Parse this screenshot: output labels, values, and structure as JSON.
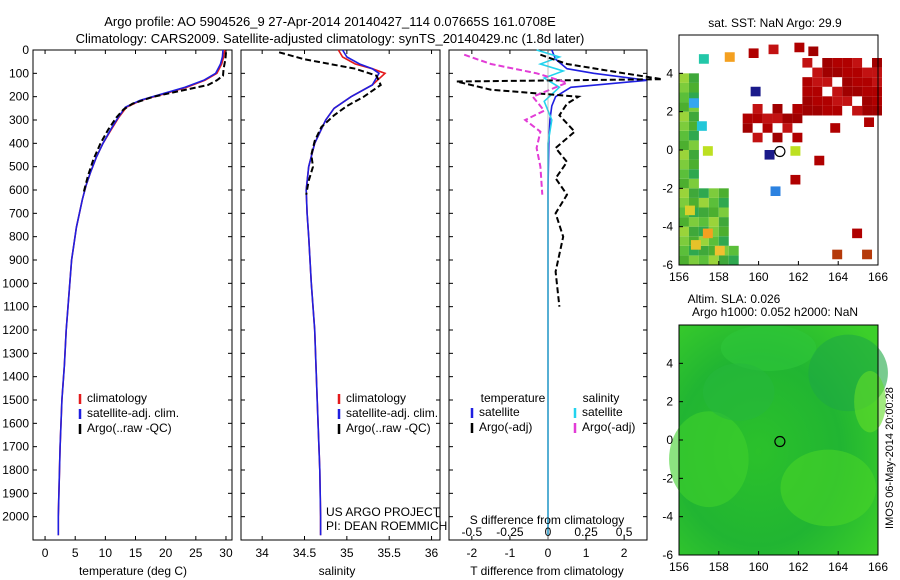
{
  "header": {
    "title_line1": "Argo profile: AO 5904526_9 27-Apr-2014 20140427_114 0.07665S 161.0708E",
    "title_line2": "Climatology: CARS2009. Satellite-adjusted climatology: synTS_20140429.nc (1.8d later)"
  },
  "project_note": {
    "line1": "US ARGO PROJECT",
    "line2": "PI: DEAN ROEMMICH"
  },
  "footer_note": "IMOS 06-May-2014 20:00:28",
  "colors": {
    "climatology": "#e41a1c",
    "satellite": "#1f1fe0",
    "argo": "#000000",
    "sat_s": "#22d3ee",
    "argo_s": "#e23cd6",
    "axis": "#000000"
  },
  "chart_data": [
    {
      "id": "temperature",
      "type": "line",
      "xlabel": "temperature (deg C)",
      "ylabel": "",
      "xlim": [
        -2,
        31
      ],
      "ylim": [
        2100,
        0
      ],
      "xticks": [
        0,
        5,
        10,
        15,
        20,
        25,
        30
      ],
      "yticks": [
        0,
        100,
        200,
        300,
        400,
        500,
        600,
        700,
        800,
        900,
        1000,
        1100,
        1200,
        1300,
        1400,
        1500,
        1600,
        1700,
        1800,
        1900,
        2000
      ],
      "legend": [
        "climatology",
        "satellite-adj. clim.",
        "Argo(..raw -QC)"
      ],
      "series": [
        {
          "name": "climatology",
          "style": "solid",
          "color_key": "climatology",
          "x": [
            29.8,
            29.6,
            29.3,
            28.5,
            26.5,
            23.5,
            19.5,
            16,
            13.5,
            12.2,
            11,
            9.6,
            8.5,
            7.6,
            6.8,
            6.2,
            5.7,
            5.2,
            4.8,
            4.4,
            4.1,
            3.8,
            3.5,
            3.2,
            2.8,
            2.5,
            2.3,
            2.2,
            2.2
          ],
          "y": [
            0,
            30,
            60,
            100,
            130,
            160,
            190,
            215,
            245,
            290,
            340,
            400,
            460,
            520,
            580,
            640,
            700,
            760,
            830,
            900,
            1000,
            1100,
            1200,
            1350,
            1500,
            1700,
            1900,
            2000,
            2080
          ]
        },
        {
          "name": "satellite-adj. clim.",
          "style": "solid",
          "color_key": "satellite",
          "x": [
            29.5,
            29.4,
            29.1,
            28.3,
            26.3,
            23.2,
            19.2,
            15.8,
            13.3,
            12.1,
            10.9,
            9.6,
            8.5,
            7.6,
            6.8,
            6.2,
            5.7,
            5.2,
            4.8,
            4.4,
            4.1,
            3.8,
            3.5,
            3.2,
            2.8,
            2.5,
            2.3,
            2.2,
            2.2
          ],
          "y": [
            0,
            30,
            60,
            100,
            130,
            160,
            190,
            215,
            245,
            290,
            340,
            400,
            460,
            520,
            580,
            640,
            700,
            760,
            830,
            900,
            1000,
            1100,
            1200,
            1350,
            1500,
            1700,
            1900,
            2000,
            2080
          ]
        },
        {
          "name": "Argo(..raw -QC)",
          "style": "dashed",
          "color_key": "argo",
          "x": [
            30,
            29.9,
            29.6,
            29.5,
            28.5,
            27,
            22.5,
            18,
            14.5,
            13,
            11.8,
            10.5,
            9.2,
            8,
            7.1,
            6.4
          ],
          "y": [
            10,
            40,
            80,
            110,
            130,
            150,
            175,
            200,
            230,
            255,
            290,
            340,
            400,
            470,
            540,
            610
          ]
        }
      ]
    },
    {
      "id": "salinity",
      "type": "line",
      "xlabel": "salinity",
      "ylabel": "",
      "xlim": [
        33.75,
        36.1
      ],
      "ylim": [
        2100,
        0
      ],
      "xticks": [
        34,
        34.5,
        35,
        35.5,
        36
      ],
      "yticks": [
        0,
        100,
        200,
        300,
        400,
        500,
        600,
        700,
        800,
        900,
        1000,
        1100,
        1200,
        1300,
        1400,
        1500,
        1600,
        1700,
        1800,
        1900,
        2000
      ],
      "legend": [
        "climatology",
        "satellite-adj. clim."
      ],
      "series": [
        {
          "name": "climatology",
          "style": "solid",
          "color_key": "climatology",
          "x": [
            34.9,
            34.95,
            35.1,
            35.3,
            35.45,
            35.3,
            35.05,
            34.85,
            34.75,
            34.62,
            34.55,
            34.52,
            34.53,
            34.55,
            34.58,
            34.62,
            34.65,
            34.68,
            34.69,
            34.69
          ],
          "y": [
            0,
            30,
            60,
            80,
            100,
            150,
            200,
            250,
            300,
            400,
            500,
            600,
            700,
            800,
            1000,
            1200,
            1500,
            1800,
            2000,
            2080
          ]
        },
        {
          "name": "satellite-adj. clim.",
          "style": "solid",
          "color_key": "satellite",
          "x": [
            34.95,
            35.0,
            35.15,
            35.3,
            35.38,
            35.3,
            35.05,
            34.85,
            34.75,
            34.62,
            34.55,
            34.52,
            34.53,
            34.55,
            34.58,
            34.62,
            34.65,
            34.68,
            34.69,
            34.69
          ],
          "y": [
            0,
            30,
            60,
            80,
            100,
            150,
            200,
            250,
            300,
            400,
            500,
            600,
            700,
            800,
            1000,
            1200,
            1500,
            1800,
            2000,
            2080
          ]
        },
        {
          "name": "Argo(..raw -QC)",
          "style": "dashed",
          "color_key": "argo",
          "x": [
            34.2,
            34.5,
            34.8,
            35.1,
            35.35,
            35.4,
            35.2,
            35.0,
            34.85,
            34.7,
            34.62,
            34.58,
            34.6,
            34.55,
            34.52
          ],
          "y": [
            10,
            40,
            60,
            80,
            110,
            150,
            200,
            240,
            280,
            330,
            390,
            450,
            500,
            560,
            620
          ]
        }
      ]
    },
    {
      "id": "difference",
      "type": "line",
      "xlabel": "T difference from climatology",
      "x2label": "S difference from climatology",
      "xlim": [
        -2.6,
        2.6
      ],
      "ylim": [
        2100,
        0
      ],
      "xticks": [
        -2,
        -1,
        0,
        1,
        2
      ],
      "x2ticks": [
        "-0.5",
        "-0.25",
        "0",
        "0.25",
        "0.5"
      ],
      "x2tick_pos": [
        -2,
        -1,
        0,
        1,
        2
      ],
      "yticks": [
        0,
        100,
        200,
        300,
        400,
        500,
        600,
        700,
        800,
        900,
        1000,
        1100,
        1200,
        1300,
        1400,
        1500,
        1600,
        1700,
        1800,
        1900,
        2000
      ],
      "legend_headers": [
        "temperature",
        "salinity"
      ],
      "legend": [
        "satellite",
        "Argo(-adj)",
        "satellite",
        "Argo(-adj)"
      ],
      "series": [
        {
          "name": "satellite T",
          "style": "solid",
          "color_key": "satellite",
          "x": [
            0.1,
            0.2,
            0.5,
            1.2,
            2.6,
            0.6,
            0.2,
            0.1,
            0.05,
            0.02,
            0,
            0,
            0,
            0
          ],
          "y": [
            0,
            40,
            80,
            100,
            130,
            160,
            200,
            240,
            300,
            400,
            600,
            1000,
            1500,
            2080
          ]
        },
        {
          "name": "satellite S",
          "style": "solid",
          "color_key": "sat_s",
          "x": [
            -0.3,
            0.3,
            -0.2,
            0.4,
            -0.1,
            0.3,
            -0.1,
            0.1,
            0,
            0,
            0
          ],
          "y": [
            0,
            30,
            60,
            90,
            120,
            160,
            220,
            300,
            400,
            800,
            2080
          ]
        },
        {
          "name": "Argo T",
          "style": "dashed",
          "color_key": "argo",
          "x": [
            -0.2,
            0.5,
            2.0,
            3.0,
            -2.4,
            -1.5,
            0.8,
            0.5,
            0.3,
            0.7,
            0.2,
            0.5,
            0.2,
            0.5,
            0.2,
            0.4,
            0.2,
            0.3
          ],
          "y": [
            20,
            60,
            100,
            125,
            135,
            170,
            200,
            230,
            280,
            350,
            420,
            480,
            550,
            620,
            700,
            800,
            950,
            1100
          ]
        },
        {
          "name": "Argo S",
          "style": "dashed",
          "color_key": "argo_s",
          "x": [
            -2.2,
            -1.5,
            -0.3,
            0.5,
            -0.4,
            -0.1,
            -0.6,
            -0.2,
            -0.3,
            -0.2,
            -0.15
          ],
          "y": [
            20,
            60,
            100,
            140,
            200,
            260,
            300,
            350,
            420,
            500,
            620
          ]
        }
      ]
    },
    {
      "id": "sst_map",
      "type": "heatmap",
      "title": "sat. SST: NaN Argo: 29.9",
      "xlim": [
        156,
        166
      ],
      "ylim": [
        -6,
        6
      ],
      "xticks": [
        156,
        158,
        160,
        162,
        164,
        166
      ],
      "yticks": [
        -6,
        -4,
        -2,
        0,
        2,
        4
      ],
      "marker": {
        "lon": 161.07,
        "lat": -0.08
      }
    },
    {
      "id": "sla_map",
      "type": "heatmap",
      "title_line1": "Altim. SLA: 0.026",
      "title_line2": "Argo h1000: 0.052 h2000: NaN",
      "xlim": [
        156,
        166
      ],
      "ylim": [
        -6,
        6
      ],
      "xticks": [
        156,
        158,
        160,
        162,
        164,
        166
      ],
      "yticks": [
        -6,
        -4,
        -2,
        0,
        2,
        4
      ],
      "marker": {
        "lon": 161.07,
        "lat": -0.08
      }
    }
  ]
}
